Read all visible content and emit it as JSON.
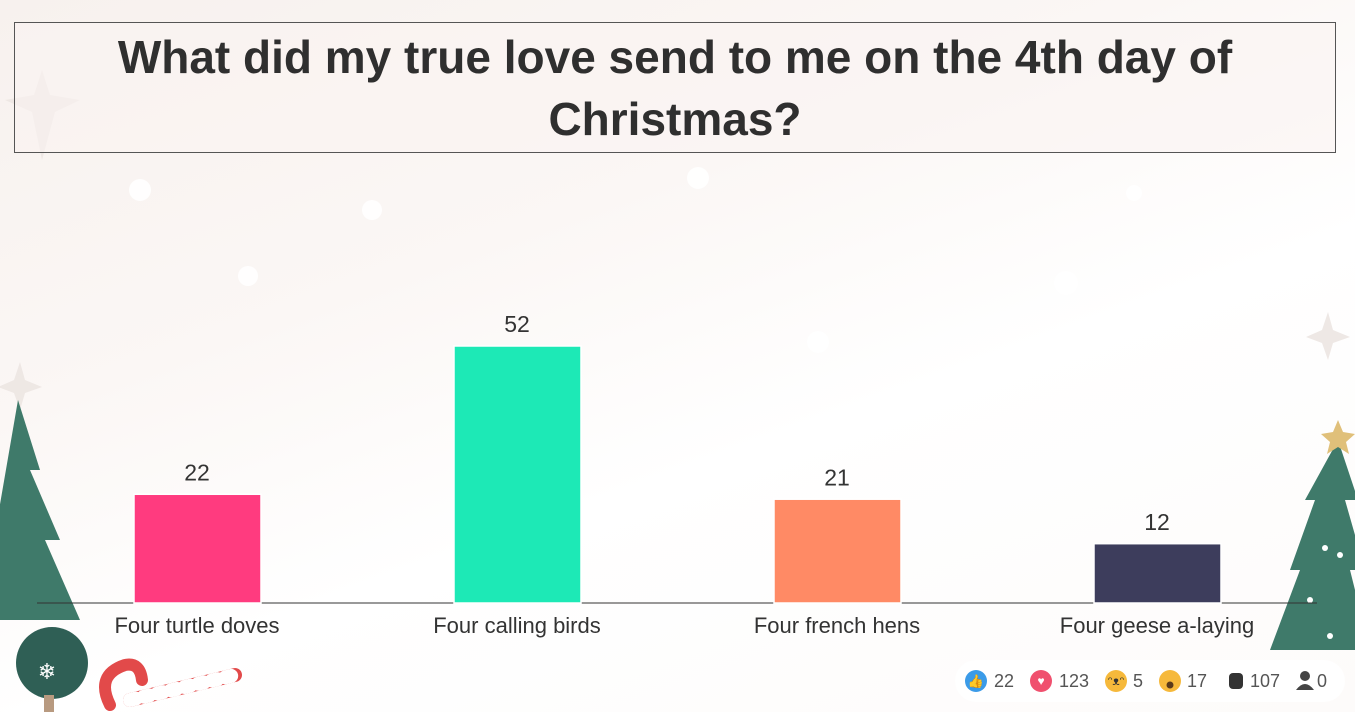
{
  "chart_data": {
    "type": "bar",
    "title": "What did my true love send to me on the 4th day of Christmas?",
    "categories": [
      "Four turtle doves",
      "Four calling birds",
      "Four french hens",
      "Four geese a-laying"
    ],
    "values": [
      22,
      52,
      21,
      12
    ],
    "colors": [
      "#ff3b7f",
      "#1de9b6",
      "#ff8a65",
      "#3d3d5c"
    ]
  },
  "reactions": [
    22,
    123,
    5,
    17,
    107,
    0
  ]
}
